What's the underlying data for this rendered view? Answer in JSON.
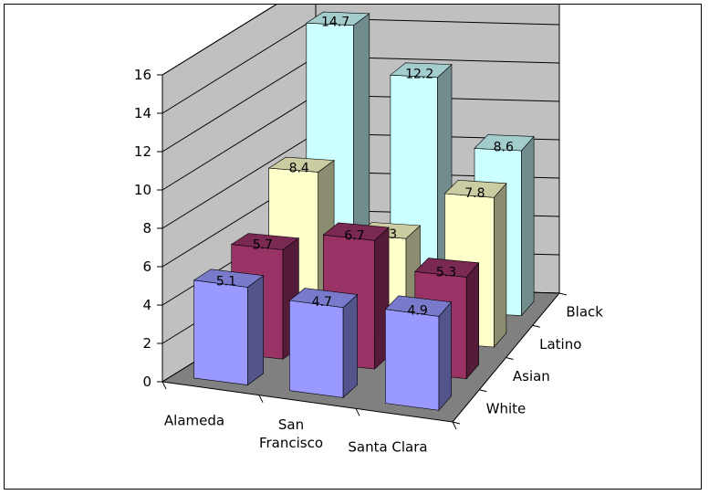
{
  "chart_data": {
    "type": "bar",
    "subtype": "3d-clustered-column",
    "title": "",
    "xlabel": "",
    "ylabel": "",
    "ylim": [
      0,
      16
    ],
    "yticks": [
      "0",
      "2",
      "4",
      "6",
      "8",
      "10",
      "12",
      "14",
      "16"
    ],
    "grid": true,
    "legend": "none",
    "categories": [
      "Alameda",
      "San Francisco",
      "Santa Clara"
    ],
    "category_tick_lines": [
      [
        "Alameda"
      ],
      [
        "San",
        "Francisco"
      ],
      [
        "Santa Clara"
      ]
    ],
    "series": [
      {
        "name": "White",
        "values": [
          5.1,
          4.7,
          4.9
        ],
        "color": "#9999FF"
      },
      {
        "name": "Asian",
        "values": [
          5.7,
          6.7,
          5.3
        ],
        "color": "#993366"
      },
      {
        "name": "Latino",
        "values": [
          8.4,
          5.3,
          7.8
        ],
        "color": "#FFFFCC"
      },
      {
        "name": "Black",
        "values": [
          14.7,
          12.2,
          8.6
        ],
        "color": "#CCFFFF"
      }
    ],
    "data_labels": [
      [
        "5.1",
        "4.7",
        "4.9"
      ],
      [
        "5.7",
        "6.7",
        "5.3"
      ],
      [
        "8.4",
        "5.3",
        "7.8"
      ],
      [
        "14.7",
        "12.2",
        "8.6"
      ]
    ],
    "colors": {
      "walls": "#C0C0C0",
      "floor": "#808080",
      "gridline": "#000000"
    }
  }
}
